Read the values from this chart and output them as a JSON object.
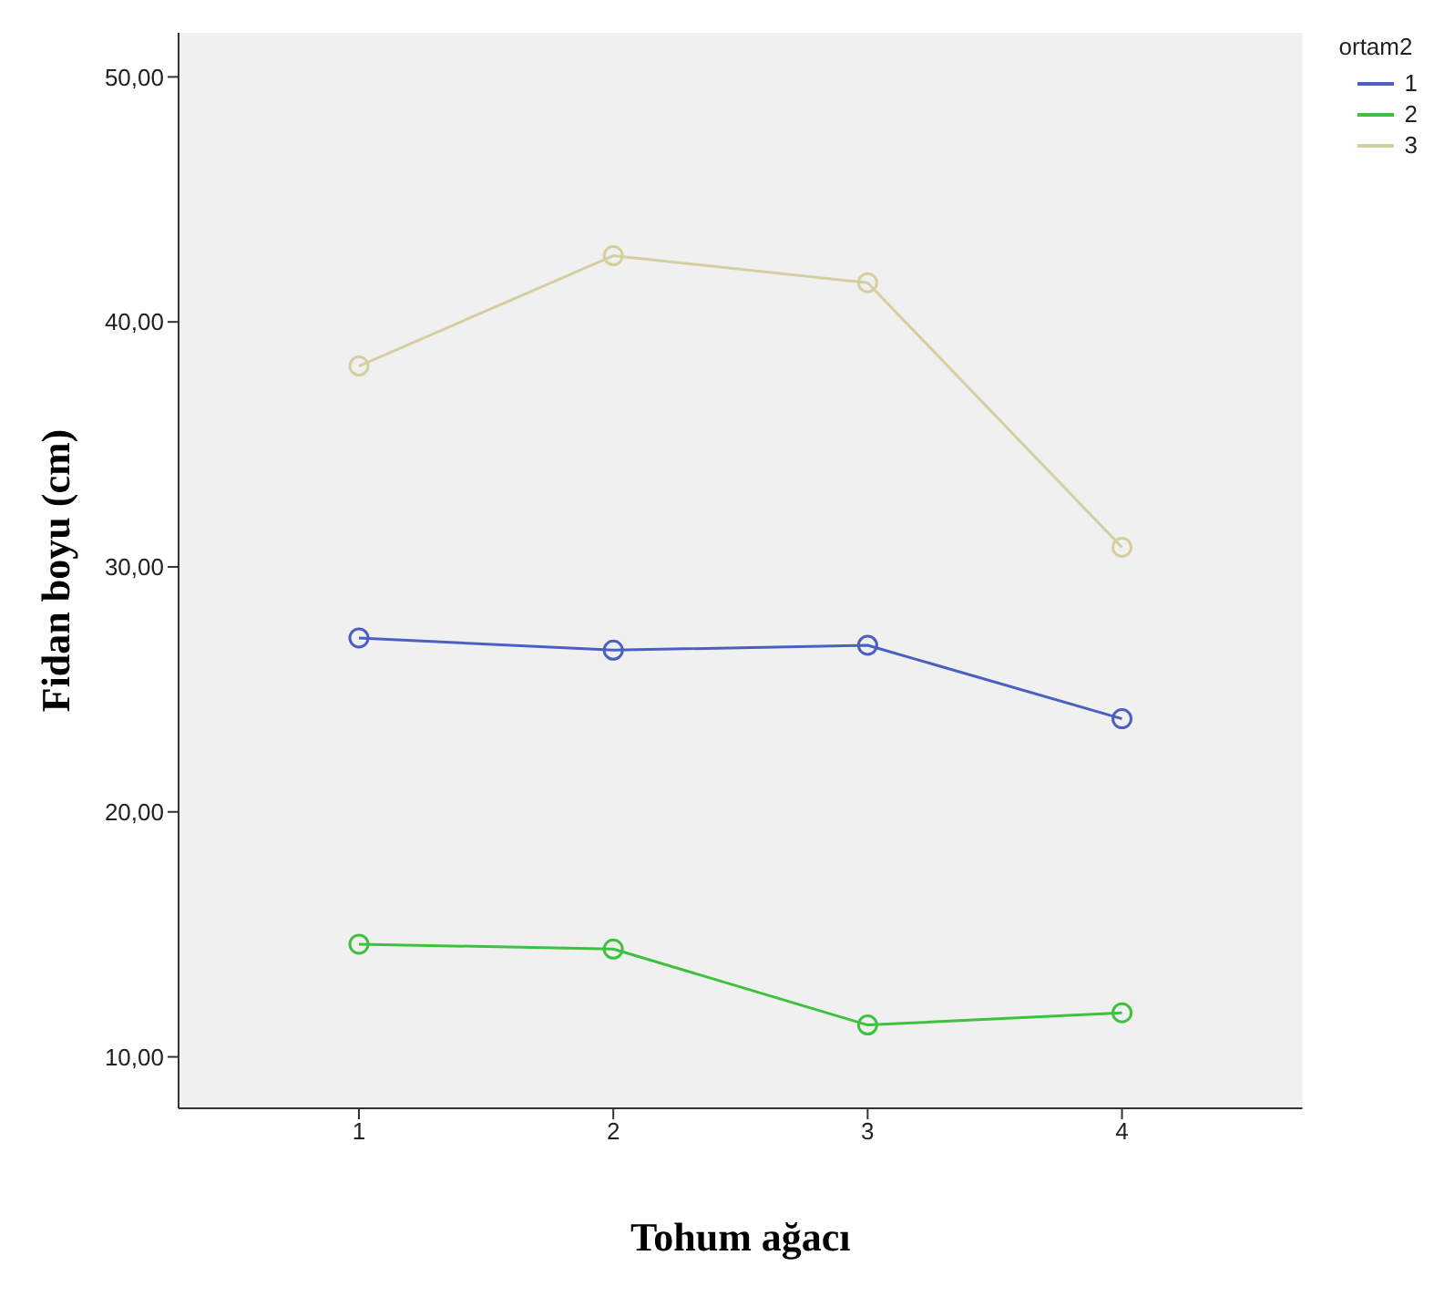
{
  "chart_data": {
    "type": "line",
    "xlabel": "Tohum ağacı",
    "ylabel": "Fidan boyu (cm)",
    "legend_title": "ortam2",
    "legend": "top right",
    "marker": "circle",
    "line_style": "solid",
    "grid": false,
    "categories": [
      "1",
      "2",
      "3",
      "4"
    ],
    "ylim": [
      7.9,
      51.8
    ],
    "yticks": [
      {
        "value": 10,
        "label": "10,00"
      },
      {
        "value": 20,
        "label": "20,00"
      },
      {
        "value": 30,
        "label": "30,00"
      },
      {
        "value": 40,
        "label": "40,00"
      },
      {
        "value": 50,
        "label": "50,00"
      }
    ],
    "series": [
      {
        "name": "1",
        "color": "#4a5fc1",
        "values": [
          27.1,
          26.6,
          26.8,
          23.8
        ]
      },
      {
        "name": "2",
        "color": "#3ec13e",
        "values": [
          14.6,
          14.4,
          11.3,
          11.8
        ]
      },
      {
        "name": "3",
        "color": "#d4cf9e",
        "values": [
          38.2,
          42.7,
          41.6,
          30.8
        ]
      }
    ]
  }
}
